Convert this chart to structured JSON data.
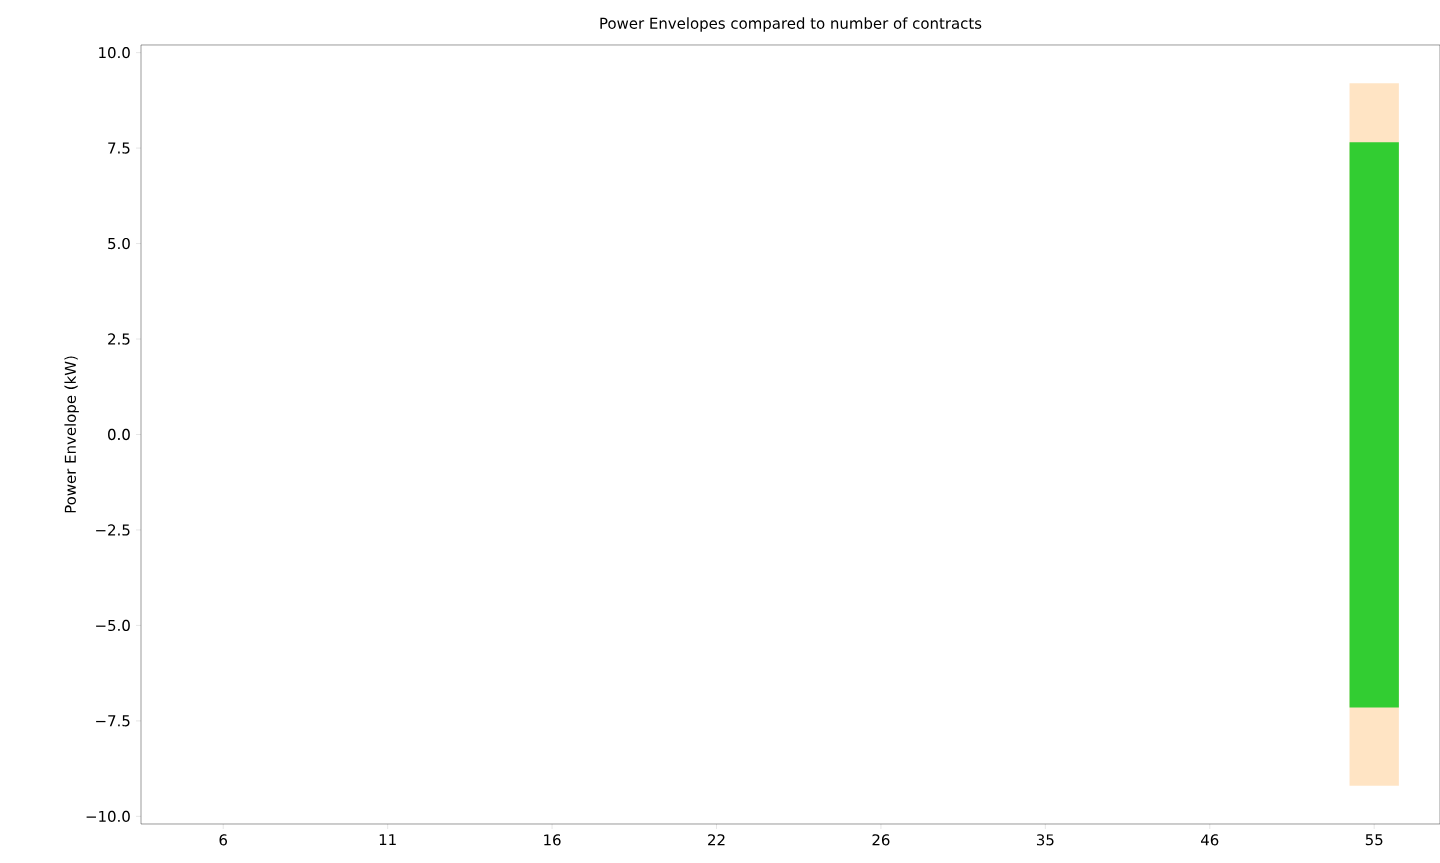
{
  "chart_data": {
    "type": "bar",
    "title": "Power Envelopes compared to number of contracts",
    "ylabel": "Power Envelope (kW)",
    "categories": [
      "6",
      "11",
      "16",
      "22",
      "26",
      "35",
      "46",
      "55"
    ],
    "series": [
      {
        "color": "#ffe4c4",
        "values": [
          null,
          null,
          null,
          null,
          null,
          null,
          null,
          18.4
        ],
        "base": [
          null,
          null,
          null,
          null,
          null,
          null,
          null,
          -9.2
        ]
      },
      {
        "color": "#32cd32",
        "values": [
          null,
          null,
          null,
          null,
          null,
          null,
          null,
          14.8
        ],
        "base": [
          null,
          null,
          null,
          null,
          null,
          null,
          null,
          -7.15
        ]
      }
    ],
    "ylim": [
      -10.2,
      10.2
    ],
    "yticks": [
      {
        "value": -10,
        "label": "−10.0"
      },
      {
        "value": -7.5,
        "label": "−7.5"
      },
      {
        "value": -5,
        "label": "−5.0"
      },
      {
        "value": -2.5,
        "label": "−2.5"
      },
      {
        "value": 0,
        "label": "0.0"
      },
      {
        "value": 2.5,
        "label": "2.5"
      },
      {
        "value": 5,
        "label": "5.0"
      },
      {
        "value": 7.5,
        "label": "7.5"
      },
      {
        "value": 10,
        "label": "10.0"
      }
    ]
  }
}
